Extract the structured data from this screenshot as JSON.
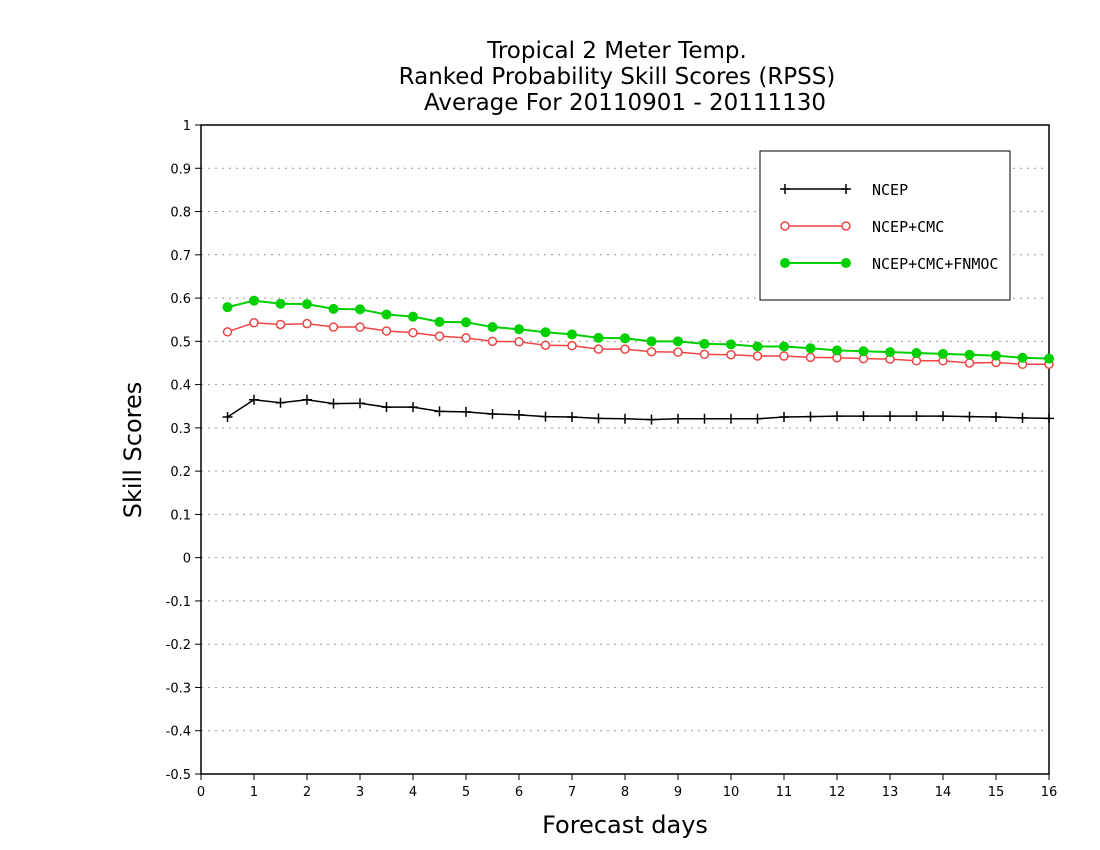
{
  "chart_data": {
    "type": "line",
    "title": [
      "Tropical 2 Meter Temp.",
      "Ranked Probability Skill Scores (RPSS)",
      "Average For 20110901 - 20111130"
    ],
    "xlabel": "Forecast days",
    "ylabel": "Skill Scores",
    "xlim": [
      0,
      16
    ],
    "ylim": [
      -0.5,
      1
    ],
    "x_ticks": [
      0,
      1,
      2,
      3,
      4,
      5,
      6,
      7,
      8,
      9,
      10,
      11,
      12,
      13,
      14,
      15,
      16
    ],
    "x_tick_labels": [
      "0",
      "1",
      "2",
      "3",
      "4",
      "5",
      "6",
      "7",
      "8",
      "9",
      "10",
      "11",
      "12",
      "13",
      "14",
      "15",
      "16"
    ],
    "y_ticks": [
      -0.5,
      -0.4,
      -0.3,
      -0.2,
      -0.1,
      0,
      0.1,
      0.2,
      0.3,
      0.4,
      0.5,
      0.6,
      0.7,
      0.8,
      0.9,
      1
    ],
    "y_tick_labels": [
      "-0.5",
      "-0.4",
      "-0.3",
      "-0.2",
      "-0.1",
      "0",
      "0.1",
      "0.2",
      "0.3",
      "0.4",
      "0.5",
      "0.6",
      "0.7",
      "0.8",
      "0.9",
      "1"
    ],
    "grid": "horizontal dotted",
    "legend_position": "top-right",
    "x": [
      0.5,
      1,
      1.5,
      2,
      2.5,
      3,
      3.5,
      4,
      4.5,
      5,
      5.5,
      6,
      6.5,
      7,
      7.5,
      8,
      8.5,
      9,
      9.5,
      10,
      10.5,
      11,
      11.5,
      12,
      12.5,
      13,
      13.5,
      14,
      14.5,
      15,
      15.5,
      16
    ],
    "series": [
      {
        "name": "NCEP",
        "color": "#000000",
        "marker": "plus",
        "values": [
          0.325,
          0.365,
          0.358,
          0.365,
          0.356,
          0.357,
          0.348,
          0.348,
          0.338,
          0.337,
          0.332,
          0.33,
          0.326,
          0.325,
          0.322,
          0.321,
          0.319,
          0.321,
          0.321,
          0.321,
          0.321,
          0.325,
          0.326,
          0.327,
          0.327,
          0.327,
          0.327,
          0.327,
          0.326,
          0.325,
          0.323,
          0.322
        ]
      },
      {
        "name": "NCEP+CMC",
        "color": "#ee4444",
        "marker": "open-circle",
        "values": [
          0.522,
          0.543,
          0.539,
          0.541,
          0.533,
          0.533,
          0.524,
          0.52,
          0.512,
          0.508,
          0.5,
          0.499,
          0.491,
          0.49,
          0.482,
          0.482,
          0.476,
          0.475,
          0.47,
          0.469,
          0.466,
          0.466,
          0.463,
          0.462,
          0.46,
          0.459,
          0.455,
          0.455,
          0.45,
          0.451,
          0.447,
          0.447
        ]
      },
      {
        "name": "NCEP+CMC+FNMOC",
        "color": "#00d000",
        "marker": "filled-circle",
        "values": [
          0.579,
          0.594,
          0.587,
          0.586,
          0.575,
          0.574,
          0.562,
          0.557,
          0.545,
          0.544,
          0.533,
          0.528,
          0.521,
          0.516,
          0.508,
          0.507,
          0.5,
          0.5,
          0.494,
          0.493,
          0.488,
          0.488,
          0.484,
          0.479,
          0.477,
          0.475,
          0.473,
          0.471,
          0.469,
          0.467,
          0.462,
          0.46
        ]
      }
    ]
  }
}
